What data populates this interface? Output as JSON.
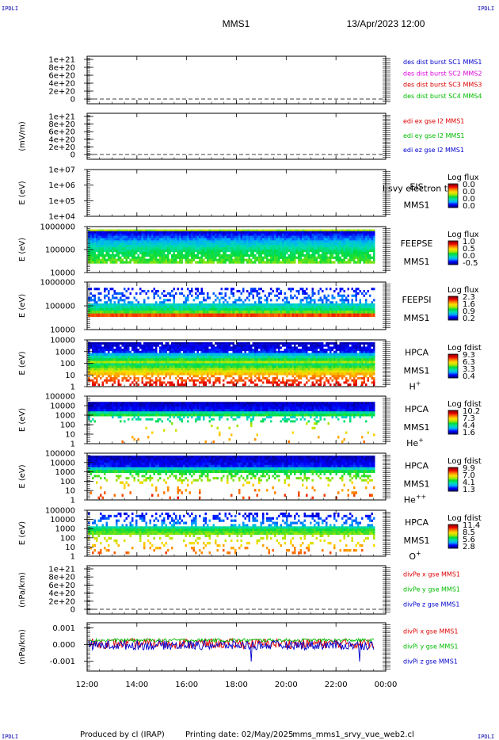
{
  "header": {
    "corner_label": "IPDLI",
    "spacecraft": "MMS1",
    "datetime": "13/Apr/2023 12:00"
  },
  "footer": {
    "produced": "Produced by cl (IRAP)",
    "printing": "Printing date: 02/May/2025",
    "file": "mms_mms1_srvy_vue_web2.cl"
  },
  "colors": {
    "red": "#dd0000",
    "green": "#00bb00",
    "blue": "#0000cc",
    "magenta": "#dd00dd",
    "orange_red": "#cc3300",
    "teal": "#00aa66"
  },
  "chart_data": [
    {
      "type": "line",
      "panel": "des-dist-burst",
      "ylabel": "",
      "yticks": [
        "1e+21",
        "8e+20",
        "6e+20",
        "4e+20",
        "2e+20",
        "0"
      ],
      "ylim": [
        0,
        1e+21
      ],
      "dashed_zero": true,
      "legend": [
        {
          "text": "des dist burst SC1 MMS1",
          "color": "#0000cc"
        },
        {
          "text": "des dist burst SC2 MMS2",
          "color": "#dd00dd"
        },
        {
          "text": "des dist burst SC3 MMS3",
          "color": "#dd0000"
        },
        {
          "text": "des dist burst SC4 MMS4",
          "color": "#00bb00"
        }
      ]
    },
    {
      "type": "line",
      "panel": "edi-e",
      "ylabel": "(mV/m)",
      "yticks": [
        "1e+21",
        "8e+20",
        "6e+20",
        "4e+20",
        "2e+20",
        "0"
      ],
      "ylim": [
        0,
        1e+21
      ],
      "dashed_zero": true,
      "legend": [
        {
          "text": "edi ex gse l2 MMS1",
          "color": "#dd0000"
        },
        {
          "text": "edi ey gse l2 MMS1",
          "color": "#00bb00"
        },
        {
          "text": "edi ez gse l2 MMS1",
          "color": "#0000cc"
        }
      ]
    },
    {
      "type": "heatmap",
      "panel": "eis",
      "ylabel": "E (eV)",
      "yticks": [
        "1e+07",
        "1e+06",
        "1e+05",
        "1e+04"
      ],
      "instrument": [
        "EIS",
        "MMS1"
      ],
      "overlay_text": "l-svy electron to",
      "colorbar_title": "Log flux",
      "colorbar_ticks": [
        "0.0",
        "0.0",
        "0.0",
        "0.0"
      ],
      "empty": true
    },
    {
      "type": "heatmap",
      "panel": "feeps-e",
      "ylabel": "E (eV)",
      "yticks": [
        "1000000",
        "100000",
        "10000"
      ],
      "instrument": [
        "FEEPSE",
        "MMS1"
      ],
      "colorbar_title": "Log flux",
      "colorbar_ticks": [
        "1.0",
        "0.5",
        "0.0",
        "-0.5"
      ]
    },
    {
      "type": "heatmap",
      "panel": "feeps-i",
      "ylabel": "E (eV)",
      "yticks": [
        "1000000",
        "100000",
        "10000"
      ],
      "instrument": [
        "FEEPSI",
        "MMS1"
      ],
      "colorbar_title": "Log flux",
      "colorbar_ticks": [
        "2.3",
        "1.6",
        "0.9",
        "0.2"
      ]
    },
    {
      "type": "heatmap",
      "panel": "hpca-h",
      "ylabel": "E (eV)",
      "yticks": [
        "10000",
        "1000",
        "100",
        "10",
        "1"
      ],
      "instrument": [
        "HPCA",
        "MMS1"
      ],
      "species": "H",
      "charge": "+",
      "colorbar_title": "Log fdist",
      "colorbar_ticks": [
        "9.3",
        "6.3",
        "3.3",
        "0.4"
      ]
    },
    {
      "type": "heatmap",
      "panel": "hpca-he",
      "ylabel": "E (eV)",
      "yticks": [
        "100000",
        "10000",
        "1000",
        "100",
        "10",
        "1"
      ],
      "instrument": [
        "HPCA",
        "MMS1"
      ],
      "species": "He",
      "charge": "+",
      "colorbar_title": "Log fdist",
      "colorbar_ticks": [
        "10.2",
        "7.3",
        "4.4",
        "1.6"
      ]
    },
    {
      "type": "heatmap",
      "panel": "hpca-hepp",
      "ylabel": "E (eV)",
      "yticks": [
        "100000",
        "10000",
        "1000",
        "100",
        "10",
        "1"
      ],
      "instrument": [
        "HPCA",
        "MMS1"
      ],
      "species": "He",
      "charge": "++",
      "colorbar_title": "Log fdist",
      "colorbar_ticks": [
        "9.9",
        "7.0",
        "4.1",
        "1.3"
      ]
    },
    {
      "type": "heatmap",
      "panel": "hpca-o",
      "ylabel": "E (eV)",
      "yticks": [
        "100000",
        "10000",
        "1000",
        "100",
        "10",
        "1"
      ],
      "instrument": [
        "HPCA",
        "MMS1"
      ],
      "species": "O",
      "charge": "+",
      "colorbar_title": "Log fdist",
      "colorbar_ticks": [
        "11.4",
        "8.5",
        "5.6",
        "2.8"
      ]
    },
    {
      "type": "line",
      "panel": "divpe",
      "ylabel": "(nPa/km)",
      "yticks": [
        "1e+21",
        "8e+20",
        "6e+20",
        "4e+20",
        "2e+20",
        "0"
      ],
      "ylim": [
        0,
        1e+21
      ],
      "dashed_zero": true,
      "legend": [
        {
          "text": "divPe x gse MMS1",
          "color": "#dd0000"
        },
        {
          "text": "divPe y gse MMS1",
          "color": "#00bb00"
        },
        {
          "text": "divPe z gse MMS1",
          "color": "#0000cc"
        }
      ]
    },
    {
      "type": "line",
      "panel": "divpi",
      "ylabel": "(nPa/km)",
      "yticks": [
        "0.001",
        "0.000",
        "-0.001"
      ],
      "ylim": [
        -0.0016,
        0.0013
      ],
      "legend": [
        {
          "text": "divPi x gse MMS1",
          "color": "#dd0000"
        },
        {
          "text": "divPi y gse MMS1",
          "color": "#00bb00"
        },
        {
          "text": "divPi z gse MMS1",
          "color": "#0000cc"
        }
      ],
      "series": [
        {
          "name": "divPi x gse MMS1",
          "color": "#dd0000",
          "mean": 5e-05,
          "noise": 0.0003
        },
        {
          "name": "divPi y gse MMS1",
          "color": "#00bb00",
          "mean": 0.00025,
          "noise": 0.0001
        },
        {
          "name": "divPi z gse MMS1",
          "color": "#0000cc",
          "mean": -5e-05,
          "noise": 0.00028
        }
      ]
    }
  ],
  "x_axis": {
    "ticks": [
      "12:00",
      "14:00",
      "16:00",
      "18:00",
      "20:00",
      "22:00",
      "00:00"
    ],
    "range_hours": [
      12,
      24
    ],
    "data_end_hour": 23.55
  }
}
